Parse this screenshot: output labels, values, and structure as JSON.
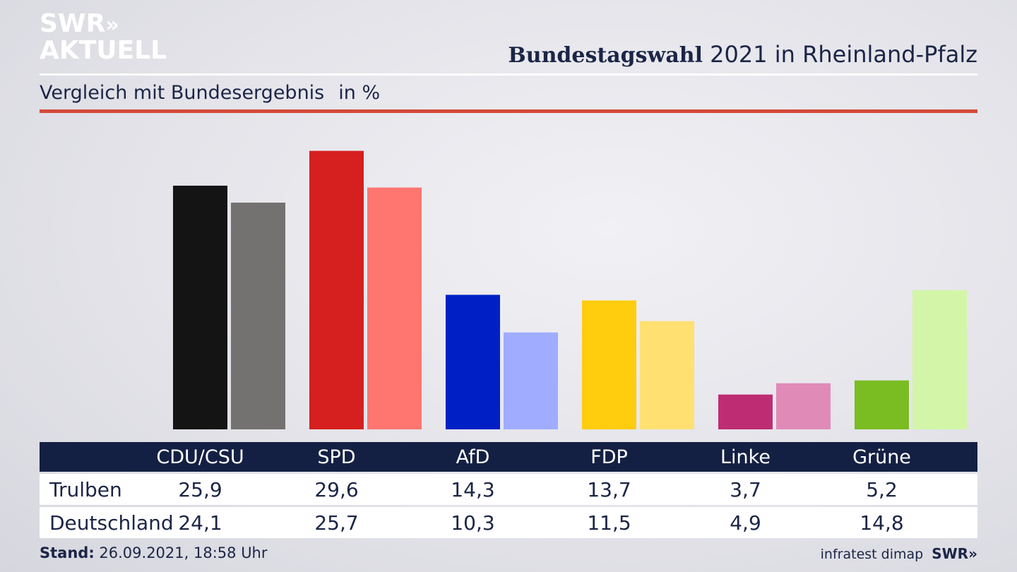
{
  "header": {
    "logo_line1": "SWR",
    "logo_arrows": "»",
    "logo_line2": "AKTUELL",
    "title_bold": "Bundestagswahl",
    "title_rest": "2021 in Rheinland-Pfalz",
    "subtitle": "Vergleich mit Bundesergebnis",
    "unit": "in %"
  },
  "footer": {
    "stand_label": "Stand:",
    "stand_value": "26.09.2021, 18:58 Uhr",
    "source": "infratest dimap",
    "swr": "SWR»"
  },
  "colors": {
    "navy": "#142043",
    "accent_red": "#d44a3a",
    "local": [
      "#141414",
      "#d61f1f",
      "#0020c6",
      "#ffcc0e",
      "#be2d73",
      "#79bd22"
    ],
    "national": [
      "#747270",
      "#ff7570",
      "#a0acff",
      "#ffe070",
      "#e08ab8",
      "#d3f5a8"
    ]
  },
  "chart_data": {
    "type": "bar",
    "categories": [
      "CDU/CSU",
      "SPD",
      "AfD",
      "FDP",
      "Linke",
      "Grüne"
    ],
    "series": [
      {
        "name": "Trulben",
        "values": [
          25.9,
          29.6,
          14.3,
          13.7,
          3.7,
          5.2
        ]
      },
      {
        "name": "Deutschland",
        "values": [
          24.1,
          25.7,
          10.3,
          11.5,
          4.9,
          14.8
        ]
      }
    ],
    "ylim": [
      0,
      31.6
    ],
    "grid": false
  }
}
